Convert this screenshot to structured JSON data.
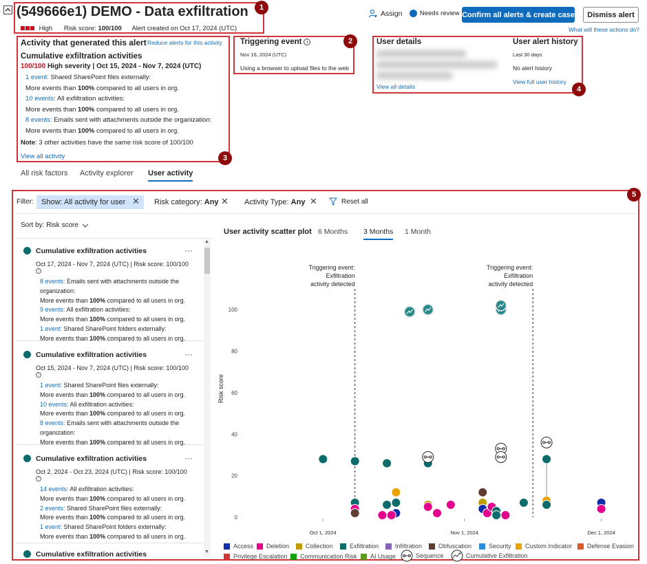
{
  "header": {
    "title": "(549666e1) DEMO - Data exfiltration",
    "severity": "High",
    "risk_score_label": "Risk score:",
    "risk_score_value": "100/100",
    "created": "Alert created on Oct 17, 2024 (UTC)",
    "assign": "Assign",
    "status": "Needs review",
    "confirm_btn": "Confirm all alerts & create case",
    "dismiss_btn": "Dismiss alert",
    "what_actions": "What will these actions do?"
  },
  "badges": [
    "1",
    "2",
    "3",
    "4",
    "5"
  ],
  "activity_panel": {
    "title": "Activity that generated this alert",
    "reduce_link": "Reduce alerts for this activity",
    "subtitle": "Cumulative exfiltration activities",
    "score": "100/100",
    "severity_text": "High severity | Oct 15, 2024 - Nov 7, 2024 (UTC)",
    "items": [
      {
        "link": "1 event:",
        "text": "Shared SharePoint files externally:",
        "detail_pre": "More events than ",
        "pct": "100%",
        "detail_post": " compared to all users in org."
      },
      {
        "link": "10 events:",
        "text": "All exfiltration activities:",
        "detail_pre": "More events than ",
        "pct": "100%",
        "detail_post": " compared to all users in org."
      },
      {
        "link": "8 events:",
        "text": "Emails sent with attachments outside the organization:",
        "detail_pre": "More events than ",
        "pct": "100%",
        "detail_post": " compared to all users in org."
      }
    ],
    "note_label": "Note",
    "note_text": ": 3 other activities have the same risk score of 100/100",
    "view_all": "View all activity"
  },
  "triggering": {
    "title": "Triggering event",
    "date": "Nov 16, 2024 (UTC)",
    "text": "Using a browser to upload files to the web"
  },
  "user_details": {
    "title": "User details",
    "view_all": "View all details"
  },
  "user_history": {
    "title": "User alert history",
    "period": "Last 30 days",
    "text": "No alert history",
    "link": "View full user history"
  },
  "tabs": [
    "All risk factors",
    "Activity explorer",
    "User activity"
  ],
  "filters": {
    "label": "Filter:",
    "show": "Show: All activity for user",
    "risk_category_label": "Risk category:",
    "risk_category_value": "Any",
    "activity_type_label": "Activity Type:",
    "activity_type_value": "Any",
    "reset": "Reset all"
  },
  "sort": "Sort by: Risk score",
  "cards": [
    {
      "title": "Cumulative exfiltration activities",
      "meta": "Oct 17, 2024 - Nov 7, 2024 (UTC) | Risk score: 100/100",
      "rows": [
        {
          "link": "8 events:",
          "text": " Emails sent with attachments outside the organization:"
        },
        {
          "pre": "More events than ",
          "pct": "100%",
          "post": " compared to all users in org."
        },
        {
          "link": "9 events:",
          "text": " All exfiltration activities:"
        },
        {
          "pre": "More events than ",
          "pct": "100%",
          "post": " compared to all users in org."
        },
        {
          "link": "1 event:",
          "text": " Shared SharePoint folders externally:"
        },
        {
          "pre": "More events than ",
          "pct": "100%",
          "post": " compared to all users in org."
        }
      ]
    },
    {
      "title": "Cumulative exfiltration activities",
      "meta": "Oct 15, 2024 - Nov 7, 2024 (UTC) | Risk score: 100/100",
      "rows": [
        {
          "link": "1 event:",
          "text": " Shared SharePoint files externally:"
        },
        {
          "pre": "More events than ",
          "pct": "100%",
          "post": " compared to all users in org."
        },
        {
          "link": "10 events:",
          "text": " All exfiltration activities:"
        },
        {
          "pre": "More events than ",
          "pct": "100%",
          "post": " compared to all users in org."
        },
        {
          "link": "8 events:",
          "text": " Emails sent with attachments outside the organization:"
        },
        {
          "pre": "More events than ",
          "pct": "100%",
          "post": " compared to all users in org."
        }
      ]
    },
    {
      "title": "Cumulative exfiltration activities",
      "meta": "Oct 2, 2024 - Oct 23, 2024 (UTC) | Risk score: 100/100",
      "rows": [
        {
          "link": "14 events:",
          "text": " All exfiltration activities:"
        },
        {
          "pre": "More events than ",
          "pct": "100%",
          "post": " compared to all users in org."
        },
        {
          "link": "2 events:",
          "text": " Shared SharePoint files externally:"
        },
        {
          "pre": "More events than ",
          "pct": "100%",
          "post": " compared to all users in org."
        },
        {
          "link": "1 event:",
          "text": " Shared SharePoint folders externally:"
        },
        {
          "pre": "More events than ",
          "pct": "100%",
          "post": " compared to all users in org."
        }
      ]
    },
    {
      "title": "Cumulative exfiltration activities",
      "meta": "",
      "rows": []
    }
  ],
  "chart_header": {
    "title": "User activity scatter plot",
    "ranges": [
      "6 Months",
      "3 Months",
      "1 Month"
    ],
    "active_range": "3 Months"
  },
  "chart_data": {
    "type": "scatter",
    "ylabel": "Risk score",
    "ylim": [
      0,
      110
    ],
    "yticks": [
      0,
      20,
      40,
      60,
      80,
      100
    ],
    "xticks": [
      {
        "label": "Oct 1, 2024",
        "date": "2024-10-01"
      },
      {
        "label": "Nov 1, 2024",
        "date": "2024-11-01"
      },
      {
        "label": "Dec 1, 2024",
        "date": "2024-12-01"
      }
    ],
    "xlim": [
      "2024-09-13",
      "2024-12-08"
    ],
    "annotations": [
      {
        "date": "2024-10-08",
        "lines": [
          "Triggering event:",
          "Exfiltration",
          "activity detected"
        ]
      },
      {
        "date": "2024-11-16",
        "lines": [
          "Triggering event:",
          "Exfiltration",
          "activity detected"
        ]
      }
    ],
    "category_colors": {
      "Access": "#0f2fa8",
      "Deletion": "#e3008c",
      "Collection": "#c19c00",
      "Exfiltration": "#0e6b6b",
      "Infiltration": "#8764b8",
      "Obfuscation": "#603d30",
      "Security": "#2a8fd6",
      "Custom Indicator": "#eaa300",
      "Defense Evasion": "#da5b29",
      "Privilege Escalation": "#d13438",
      "Communication Risk": "#13a10e",
      "AI Usage": "#5c9a1c"
    },
    "points": [
      {
        "date": "2024-10-01",
        "y": 28,
        "cat": "Exfiltration"
      },
      {
        "date": "2024-10-08",
        "y": 27,
        "cat": "Exfiltration"
      },
      {
        "date": "2024-10-15",
        "y": 26,
        "cat": "Exfiltration"
      },
      {
        "date": "2024-10-08",
        "y": 7,
        "cat": "Exfiltration"
      },
      {
        "date": "2024-10-08",
        "y": 4,
        "cat": "Deletion"
      },
      {
        "date": "2024-10-08",
        "y": 2,
        "cat": "Obfuscation"
      },
      {
        "date": "2024-10-14",
        "y": 1,
        "cat": "Deletion"
      },
      {
        "date": "2024-10-15",
        "y": 6,
        "cat": "Exfiltration"
      },
      {
        "date": "2024-10-17",
        "y": 12,
        "cat": "Custom Indicator"
      },
      {
        "date": "2024-10-17",
        "y": 7,
        "cat": "Exfiltration"
      },
      {
        "date": "2024-10-17",
        "y": 2,
        "cat": "Access"
      },
      {
        "date": "2024-10-16",
        "y": 1,
        "cat": "Deletion"
      },
      {
        "date": "2024-10-24",
        "y": 6,
        "cat": "Collection"
      },
      {
        "date": "2024-10-24",
        "y": 5,
        "cat": "Deletion"
      },
      {
        "date": "2024-10-24",
        "y": 26,
        "cat": "Exfiltration"
      },
      {
        "date": "2024-10-29",
        "y": 6,
        "cat": "Deletion"
      },
      {
        "date": "2024-10-26",
        "y": 2,
        "cat": "Deletion"
      },
      {
        "date": "2024-11-05",
        "y": 12,
        "cat": "Obfuscation"
      },
      {
        "date": "2024-11-05",
        "y": 7,
        "cat": "Collection"
      },
      {
        "date": "2024-11-05",
        "y": 4,
        "cat": "Access"
      },
      {
        "date": "2024-11-06",
        "y": 2,
        "cat": "Deletion"
      },
      {
        "date": "2024-11-07",
        "y": 5,
        "cat": "Deletion"
      },
      {
        "date": "2024-11-08",
        "y": 3,
        "cat": "Exfiltration"
      },
      {
        "date": "2024-11-08",
        "y": 1,
        "cat": "Exfiltration"
      },
      {
        "date": "2024-11-10",
        "y": 1,
        "cat": "Deletion"
      },
      {
        "date": "2024-11-14",
        "y": 7,
        "cat": "Exfiltration"
      },
      {
        "date": "2024-11-19",
        "y": 8,
        "cat": "Custom Indicator"
      },
      {
        "date": "2024-11-19",
        "y": 6,
        "cat": "Exfiltration"
      },
      {
        "date": "2024-11-19",
        "y": 28,
        "cat": "Exfiltration"
      },
      {
        "date": "2024-12-01",
        "y": 7,
        "cat": "Access"
      },
      {
        "date": "2024-12-01",
        "y": 4,
        "cat": "Deletion"
      }
    ],
    "cumulative": [
      {
        "date": "2024-10-20",
        "y": 99
      },
      {
        "date": "2024-10-24",
        "y": 100
      },
      {
        "date": "2024-11-09",
        "y": 100
      },
      {
        "date": "2024-11-09",
        "y": 102
      }
    ],
    "sequences": [
      {
        "date": "2024-10-24",
        "y": 29
      },
      {
        "date": "2024-11-09",
        "y": 33
      },
      {
        "date": "2024-11-09",
        "y": 29
      },
      {
        "date": "2024-11-19",
        "y": 36
      }
    ],
    "connector": {
      "date": "2024-11-19",
      "y_from": 8,
      "y_to": 28
    },
    "legend": [
      "Access",
      "Deletion",
      "Collection",
      "Exfiltration",
      "Infiltration",
      "Obfuscation",
      "Security",
      "Custom Indicator",
      "Defense Evasion",
      "Privilege Escalation",
      "Communication Risk",
      "AI Usage",
      "Sequence",
      "Cumulative Exfiltration"
    ]
  }
}
